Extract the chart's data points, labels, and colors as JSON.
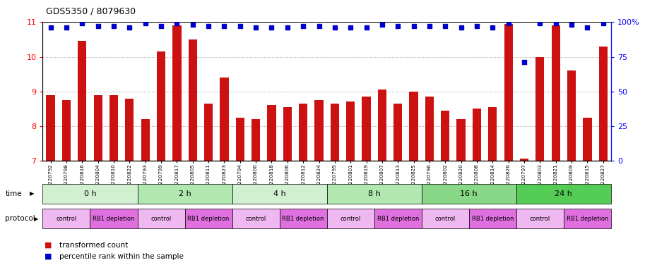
{
  "title": "GDS5350 / 8079630",
  "samples": [
    "GSM1220792",
    "GSM1220798",
    "GSM1220816",
    "GSM1220804",
    "GSM1220810",
    "GSM1220822",
    "GSM1220793",
    "GSM1220799",
    "GSM1220817",
    "GSM1220805",
    "GSM1220811",
    "GSM1220823",
    "GSM1220794",
    "GSM1220800",
    "GSM1220818",
    "GSM1220806",
    "GSM1220812",
    "GSM1220824",
    "GSM1220795",
    "GSM1220801",
    "GSM1220819",
    "GSM1220807",
    "GSM1220813",
    "GSM1220825",
    "GSM1220796",
    "GSM1220802",
    "GSM1220820",
    "GSM1220808",
    "GSM1220814",
    "GSM1220826",
    "GSM1220797",
    "GSM1220803",
    "GSM1220821",
    "GSM1220809",
    "GSM1220815",
    "GSM1220827"
  ],
  "bar_values": [
    8.9,
    8.75,
    10.45,
    8.9,
    8.9,
    8.8,
    8.2,
    10.15,
    10.9,
    10.5,
    8.65,
    9.4,
    8.25,
    8.2,
    8.6,
    8.55,
    8.65,
    8.75,
    8.65,
    8.7,
    8.85,
    9.05,
    8.65,
    9.0,
    8.85,
    8.45,
    8.2,
    8.5,
    8.55,
    10.95,
    7.05,
    10.0,
    10.9,
    9.6,
    8.25,
    10.3
  ],
  "percentile_values": [
    96,
    96,
    99,
    97,
    97,
    96,
    99,
    97,
    99,
    98,
    97,
    97,
    97,
    96,
    96,
    96,
    97,
    97,
    96,
    96,
    96,
    98,
    97,
    97,
    97,
    97,
    96,
    97,
    96,
    99,
    71,
    99,
    99,
    98,
    96,
    99
  ],
  "time_groups": [
    {
      "label": "0 h",
      "start": 0,
      "end": 6,
      "color": "#d0f0d0"
    },
    {
      "label": "2 h",
      "start": 6,
      "end": 12,
      "color": "#b0e8b0"
    },
    {
      "label": "4 h",
      "start": 12,
      "end": 18,
      "color": "#d0f0d0"
    },
    {
      "label": "8 h",
      "start": 18,
      "end": 24,
      "color": "#b0e8b0"
    },
    {
      "label": "16 h",
      "start": 24,
      "end": 30,
      "color": "#88d888"
    },
    {
      "label": "24 h",
      "start": 30,
      "end": 36,
      "color": "#55cc55"
    }
  ],
  "protocol_groups": [
    {
      "label": "control",
      "start": 0,
      "end": 3,
      "color": "#f0b8f0"
    },
    {
      "label": "RB1 depletion",
      "start": 3,
      "end": 6,
      "color": "#e070e0"
    },
    {
      "label": "control",
      "start": 6,
      "end": 9,
      "color": "#f0b8f0"
    },
    {
      "label": "RB1 depletion",
      "start": 9,
      "end": 12,
      "color": "#e070e0"
    },
    {
      "label": "control",
      "start": 12,
      "end": 15,
      "color": "#f0b8f0"
    },
    {
      "label": "RB1 depletion",
      "start": 15,
      "end": 18,
      "color": "#e070e0"
    },
    {
      "label": "control",
      "start": 18,
      "end": 21,
      "color": "#f0b8f0"
    },
    {
      "label": "RB1 depletion",
      "start": 21,
      "end": 24,
      "color": "#e070e0"
    },
    {
      "label": "control",
      "start": 24,
      "end": 27,
      "color": "#f0b8f0"
    },
    {
      "label": "RB1 depletion",
      "start": 27,
      "end": 30,
      "color": "#e070e0"
    },
    {
      "label": "control",
      "start": 30,
      "end": 33,
      "color": "#f0b8f0"
    },
    {
      "label": "RB1 depletion",
      "start": 33,
      "end": 36,
      "color": "#e070e0"
    }
  ],
  "ylim_left": [
    7,
    11
  ],
  "ylim_right": [
    0,
    100
  ],
  "yticks_left": [
    7,
    8,
    9,
    10,
    11
  ],
  "yticks_right": [
    0,
    25,
    50,
    75,
    100
  ],
  "bar_color": "#cc1111",
  "scatter_color": "#0000cc",
  "grid_color": "#888888",
  "legend_bar_label": "transformed count",
  "legend_scatter_label": "percentile rank within the sample"
}
